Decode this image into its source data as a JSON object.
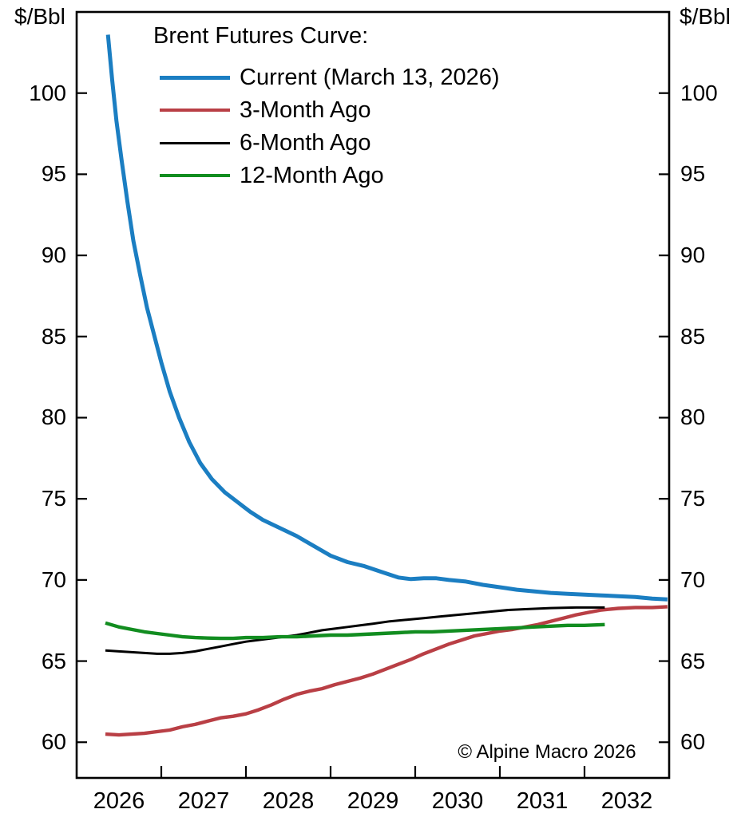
{
  "chart_data": {
    "type": "line",
    "title": "Brent Futures Curve:",
    "unit_label": "$/Bbl",
    "watermark": "© Alpine Macro 2026",
    "grid": false,
    "legend_position": "top-left-inside",
    "x_range": [
      2026,
      2033
    ],
    "y_range": [
      57.8,
      105.0
    ],
    "y_ticks": [
      60,
      65,
      70,
      75,
      80,
      85,
      90,
      95,
      100
    ],
    "x_tick_boundaries": [
      2027,
      2028,
      2029,
      2030,
      2031,
      2032
    ],
    "x_labels": [
      {
        "t": 2026.5,
        "text": "2026"
      },
      {
        "t": 2027.5,
        "text": "2027"
      },
      {
        "t": 2028.5,
        "text": "2028"
      },
      {
        "t": 2029.5,
        "text": "2029"
      },
      {
        "t": 2030.5,
        "text": "2030"
      },
      {
        "t": 2031.5,
        "text": "2031"
      },
      {
        "t": 2032.5,
        "text": "2032"
      }
    ],
    "series": [
      {
        "name": "Current (March 13, 2026)",
        "color": "#1b7ec2",
        "width": 5,
        "points": [
          [
            2026.37,
            103.6
          ],
          [
            2026.42,
            100.8
          ],
          [
            2026.47,
            98.3
          ],
          [
            2026.53,
            95.9
          ],
          [
            2026.6,
            93.3
          ],
          [
            2026.67,
            90.9
          ],
          [
            2026.75,
            88.8
          ],
          [
            2026.83,
            86.8
          ],
          [
            2026.92,
            85.0
          ],
          [
            2027.0,
            83.4
          ],
          [
            2027.1,
            81.6
          ],
          [
            2027.21,
            80.0
          ],
          [
            2027.33,
            78.5
          ],
          [
            2027.46,
            77.2
          ],
          [
            2027.6,
            76.2
          ],
          [
            2027.75,
            75.4
          ],
          [
            2027.9,
            74.8
          ],
          [
            2028.05,
            74.2
          ],
          [
            2028.2,
            73.7
          ],
          [
            2028.4,
            73.2
          ],
          [
            2028.6,
            72.7
          ],
          [
            2028.8,
            72.1
          ],
          [
            2029.0,
            71.5
          ],
          [
            2029.2,
            71.1
          ],
          [
            2029.4,
            70.85
          ],
          [
            2029.6,
            70.5
          ],
          [
            2029.8,
            70.15
          ],
          [
            2029.95,
            70.05
          ],
          [
            2030.1,
            70.1
          ],
          [
            2030.25,
            70.1
          ],
          [
            2030.4,
            70.0
          ],
          [
            2030.6,
            69.9
          ],
          [
            2030.8,
            69.7
          ],
          [
            2031.0,
            69.55
          ],
          [
            2031.2,
            69.4
          ],
          [
            2031.4,
            69.3
          ],
          [
            2031.6,
            69.2
          ],
          [
            2031.8,
            69.15
          ],
          [
            2032.0,
            69.1
          ],
          [
            2032.2,
            69.05
          ],
          [
            2032.4,
            69.0
          ],
          [
            2032.6,
            68.95
          ],
          [
            2032.8,
            68.85
          ],
          [
            2032.98,
            68.8
          ]
        ]
      },
      {
        "name": "3-Month Ago",
        "color": "#b93f45",
        "width": 4.4,
        "points": [
          [
            2026.34,
            60.5
          ],
          [
            2026.5,
            60.45
          ],
          [
            2026.65,
            60.5
          ],
          [
            2026.8,
            60.55
          ],
          [
            2026.95,
            60.65
          ],
          [
            2027.1,
            60.75
          ],
          [
            2027.25,
            60.95
          ],
          [
            2027.4,
            61.1
          ],
          [
            2027.55,
            61.3
          ],
          [
            2027.7,
            61.5
          ],
          [
            2027.85,
            61.6
          ],
          [
            2028.0,
            61.75
          ],
          [
            2028.15,
            62.0
          ],
          [
            2028.3,
            62.3
          ],
          [
            2028.45,
            62.65
          ],
          [
            2028.6,
            62.95
          ],
          [
            2028.75,
            63.15
          ],
          [
            2028.9,
            63.3
          ],
          [
            2029.05,
            63.55
          ],
          [
            2029.2,
            63.75
          ],
          [
            2029.35,
            63.95
          ],
          [
            2029.5,
            64.2
          ],
          [
            2029.65,
            64.5
          ],
          [
            2029.8,
            64.8
          ],
          [
            2029.95,
            65.1
          ],
          [
            2030.1,
            65.45
          ],
          [
            2030.25,
            65.75
          ],
          [
            2030.4,
            66.05
          ],
          [
            2030.55,
            66.3
          ],
          [
            2030.7,
            66.55
          ],
          [
            2030.85,
            66.7
          ],
          [
            2031.0,
            66.85
          ],
          [
            2031.15,
            66.95
          ],
          [
            2031.3,
            67.1
          ],
          [
            2031.45,
            67.25
          ],
          [
            2031.6,
            67.45
          ],
          [
            2031.75,
            67.65
          ],
          [
            2031.9,
            67.85
          ],
          [
            2032.05,
            68.0
          ],
          [
            2032.2,
            68.15
          ],
          [
            2032.4,
            68.25
          ],
          [
            2032.6,
            68.3
          ],
          [
            2032.8,
            68.3
          ],
          [
            2032.98,
            68.35
          ]
        ]
      },
      {
        "name": "6-Month Ago",
        "color": "#000000",
        "width": 3,
        "points": [
          [
            2026.34,
            65.65
          ],
          [
            2026.5,
            65.6
          ],
          [
            2026.65,
            65.55
          ],
          [
            2026.8,
            65.5
          ],
          [
            2026.95,
            65.45
          ],
          [
            2027.1,
            65.45
          ],
          [
            2027.25,
            65.5
          ],
          [
            2027.4,
            65.6
          ],
          [
            2027.55,
            65.75
          ],
          [
            2027.7,
            65.9
          ],
          [
            2027.85,
            66.05
          ],
          [
            2028.0,
            66.2
          ],
          [
            2028.15,
            66.3
          ],
          [
            2028.3,
            66.4
          ],
          [
            2028.45,
            66.5
          ],
          [
            2028.6,
            66.6
          ],
          [
            2028.75,
            66.75
          ],
          [
            2028.9,
            66.9
          ],
          [
            2029.05,
            67.0
          ],
          [
            2029.2,
            67.1
          ],
          [
            2029.35,
            67.2
          ],
          [
            2029.5,
            67.3
          ],
          [
            2029.7,
            67.45
          ],
          [
            2029.9,
            67.55
          ],
          [
            2030.1,
            67.65
          ],
          [
            2030.3,
            67.75
          ],
          [
            2030.5,
            67.85
          ],
          [
            2030.7,
            67.95
          ],
          [
            2030.9,
            68.05
          ],
          [
            2031.1,
            68.15
          ],
          [
            2031.3,
            68.2
          ],
          [
            2031.6,
            68.27
          ],
          [
            2031.9,
            68.3
          ],
          [
            2032.24,
            68.3
          ]
        ]
      },
      {
        "name": "12-Month Ago",
        "color": "#128d20",
        "width": 4.4,
        "points": [
          [
            2026.34,
            67.35
          ],
          [
            2026.5,
            67.1
          ],
          [
            2026.65,
            66.95
          ],
          [
            2026.8,
            66.8
          ],
          [
            2026.95,
            66.7
          ],
          [
            2027.1,
            66.6
          ],
          [
            2027.25,
            66.5
          ],
          [
            2027.4,
            66.45
          ],
          [
            2027.55,
            66.42
          ],
          [
            2027.7,
            66.4
          ],
          [
            2027.85,
            66.4
          ],
          [
            2028.0,
            66.45
          ],
          [
            2028.2,
            66.45
          ],
          [
            2028.4,
            66.5
          ],
          [
            2028.6,
            66.5
          ],
          [
            2028.8,
            66.55
          ],
          [
            2029.0,
            66.6
          ],
          [
            2029.2,
            66.6
          ],
          [
            2029.4,
            66.65
          ],
          [
            2029.6,
            66.7
          ],
          [
            2029.8,
            66.75
          ],
          [
            2030.0,
            66.8
          ],
          [
            2030.2,
            66.8
          ],
          [
            2030.4,
            66.85
          ],
          [
            2030.6,
            66.9
          ],
          [
            2030.8,
            66.95
          ],
          [
            2031.0,
            67.0
          ],
          [
            2031.2,
            67.05
          ],
          [
            2031.4,
            67.1
          ],
          [
            2031.6,
            67.15
          ],
          [
            2031.8,
            67.2
          ],
          [
            2032.0,
            67.2
          ],
          [
            2032.24,
            67.25
          ]
        ]
      }
    ]
  }
}
